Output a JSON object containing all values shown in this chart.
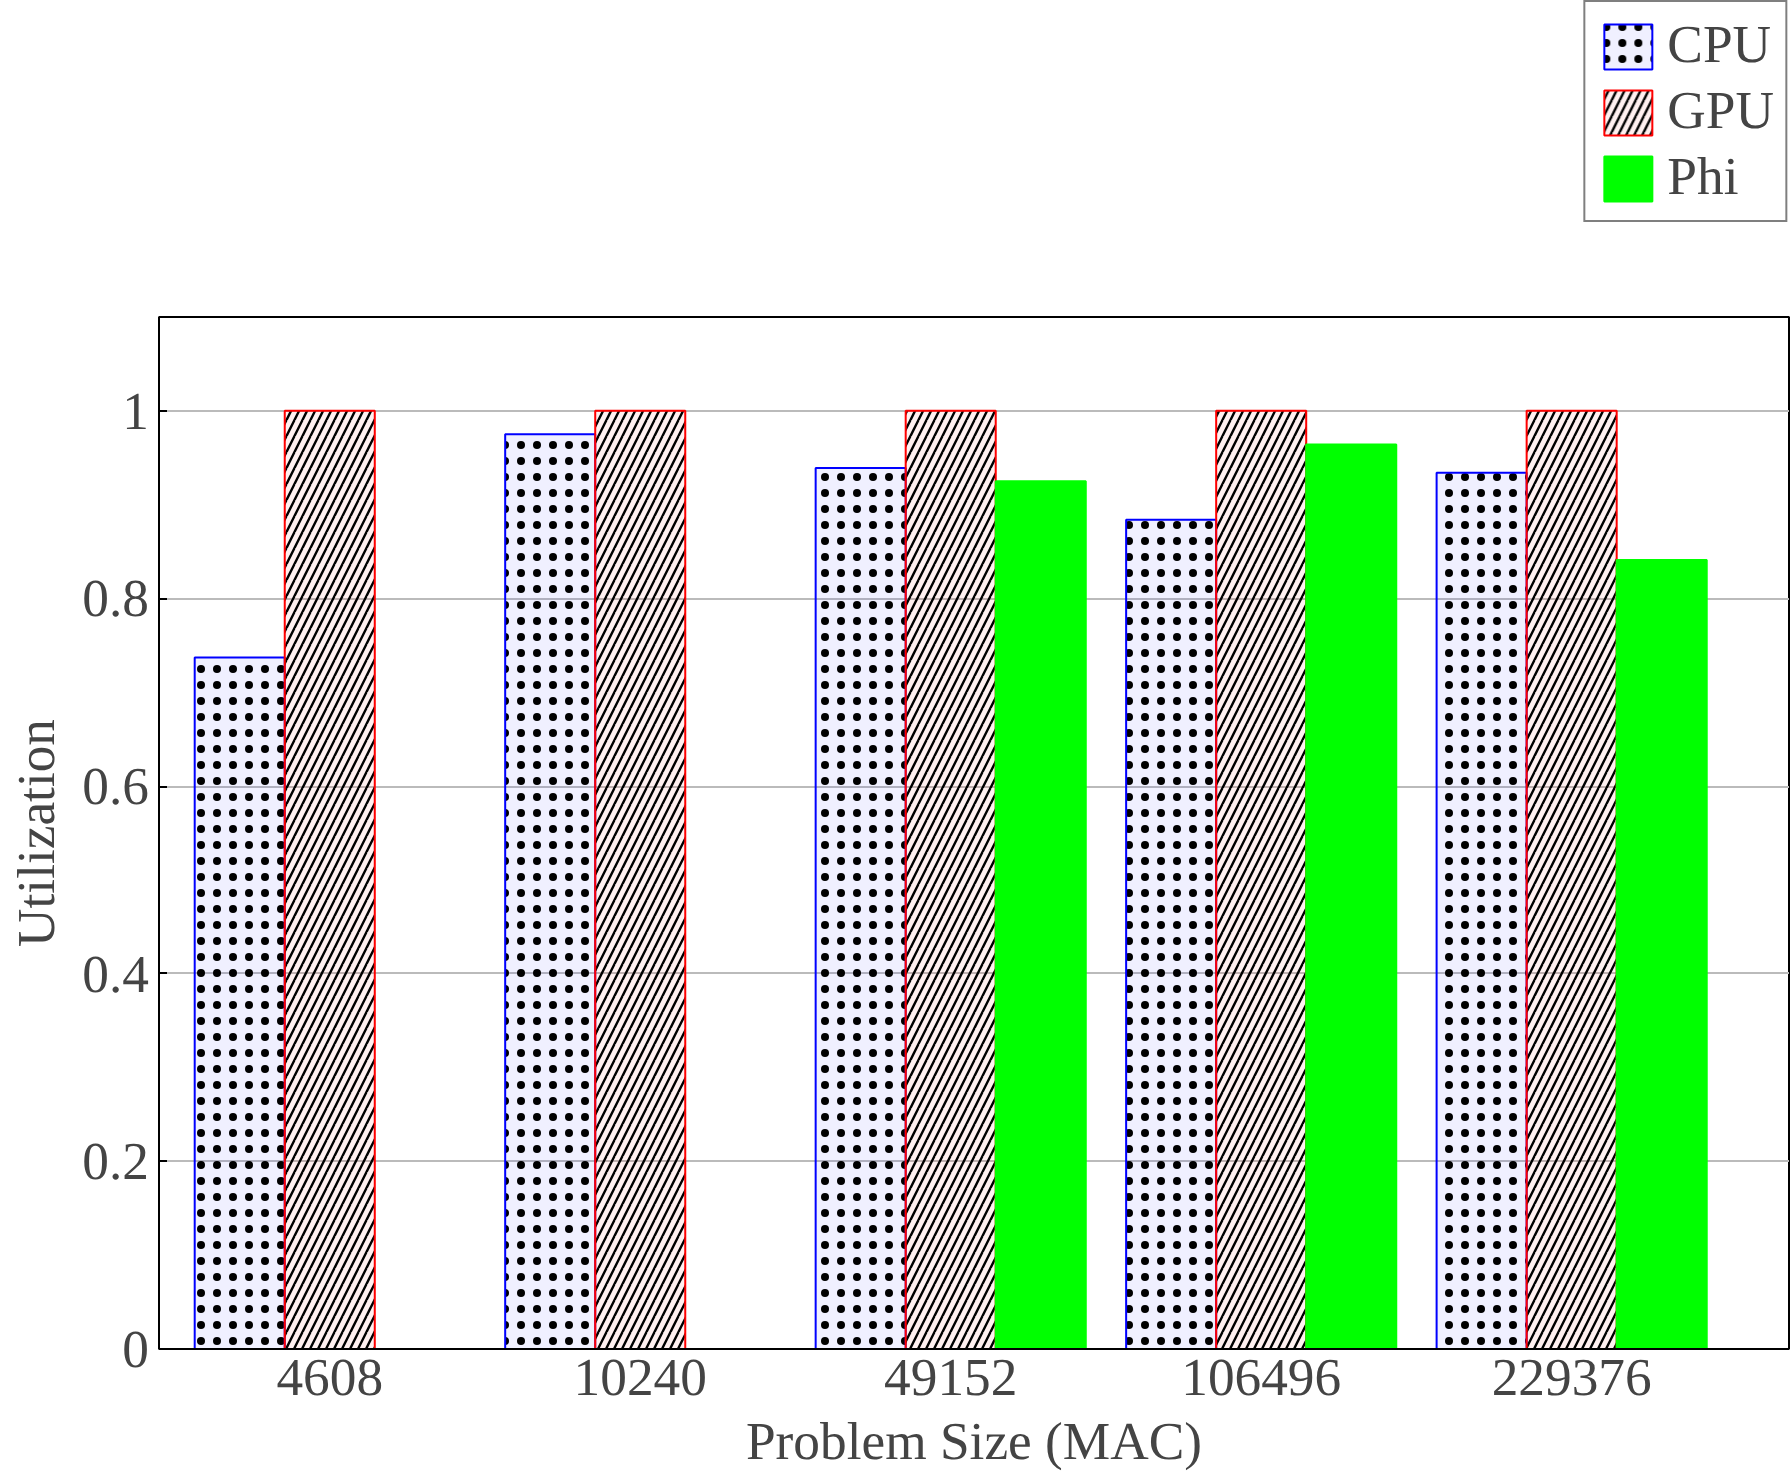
{
  "chart_data": {
    "type": "bar",
    "xlabel": "Problem Size (MAC)",
    "ylabel": "Utilization",
    "categories": [
      "4608",
      "10240",
      "49152",
      "106496",
      "229376"
    ],
    "series": [
      {
        "name": "CPU",
        "color": "#0000ff",
        "values": [
          0.737,
          0.975,
          0.939,
          0.884,
          0.934
        ]
      },
      {
        "name": "GPU",
        "color": "#ff0000",
        "values": [
          1,
          1,
          1,
          1,
          1
        ]
      },
      {
        "name": "Phi",
        "color": "#00ff00",
        "values": [
          0,
          0,
          0.925,
          0.964,
          0.841
        ]
      }
    ],
    "ylim": [
      0,
      1.1
    ],
    "yticks": [
      0,
      0.2,
      0.4,
      0.6,
      0.8,
      1
    ],
    "grid": "y",
    "legend": "top right"
  }
}
